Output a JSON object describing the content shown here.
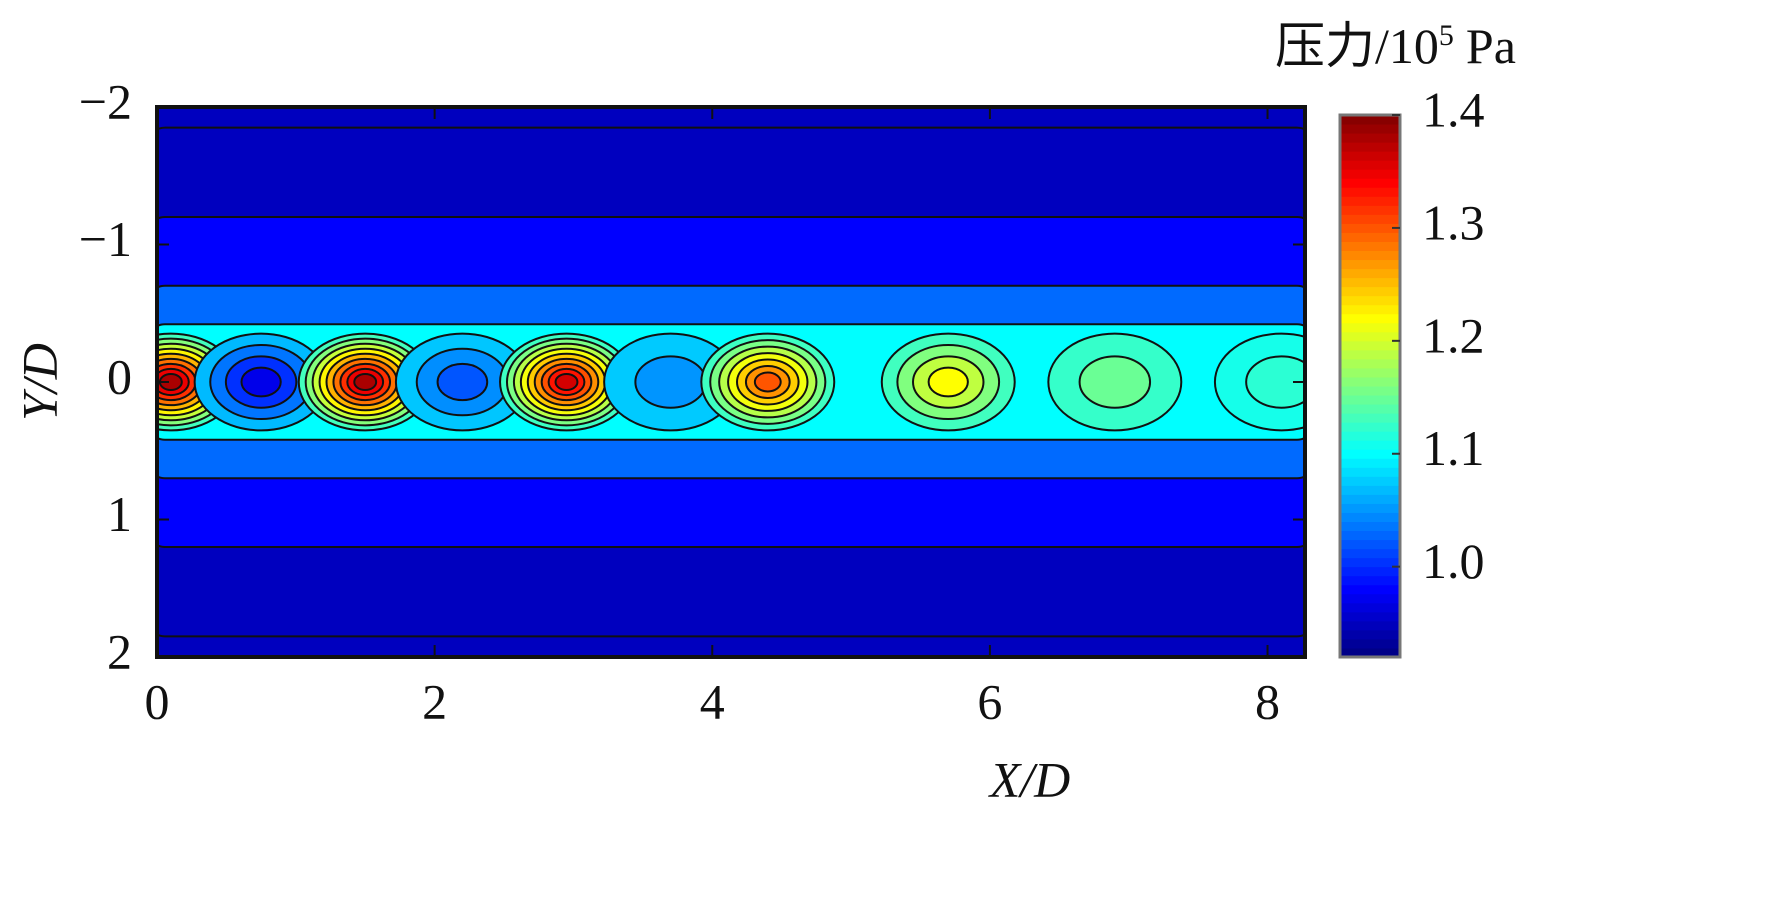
{
  "chart_data": {
    "type": "contour",
    "x_label": "X/D",
    "y_label": "Y/D",
    "colorbar_label": "压力/10",
    "colorbar_label_exponent": "5",
    "colorbar_label_unit": "Pa",
    "xlim": [
      0,
      8.27
    ],
    "xticks": [
      0,
      2,
      4,
      6,
      8
    ],
    "ylim": [
      -2,
      2
    ],
    "yticks": [
      {
        "value": -2,
        "label": "−2"
      },
      {
        "value": -1,
        "label": "−1"
      },
      0,
      1,
      2
    ],
    "y_inverted": true,
    "clim": [
      0.92,
      1.4
    ],
    "cticks": [
      {
        "value": 1.0,
        "label": "1.0"
      },
      1.1,
      1.2,
      1.3,
      1.4
    ],
    "colormap": "jet",
    "bands": {
      "half_width": [
        1.85,
        1.2,
        0.7,
        0.42
      ],
      "values": [
        0.95,
        0.98,
        1.03,
        1.1
      ]
    },
    "centerline": {
      "x": [
        0.1,
        0.75,
        1.5,
        2.2,
        2.95,
        3.7,
        4.4,
        5.7,
        6.9,
        8.1
      ],
      "values": [
        1.38,
        0.97,
        1.38,
        1.02,
        1.36,
        1.05,
        1.3,
        1.22,
        1.15,
        1.12
      ]
    }
  }
}
